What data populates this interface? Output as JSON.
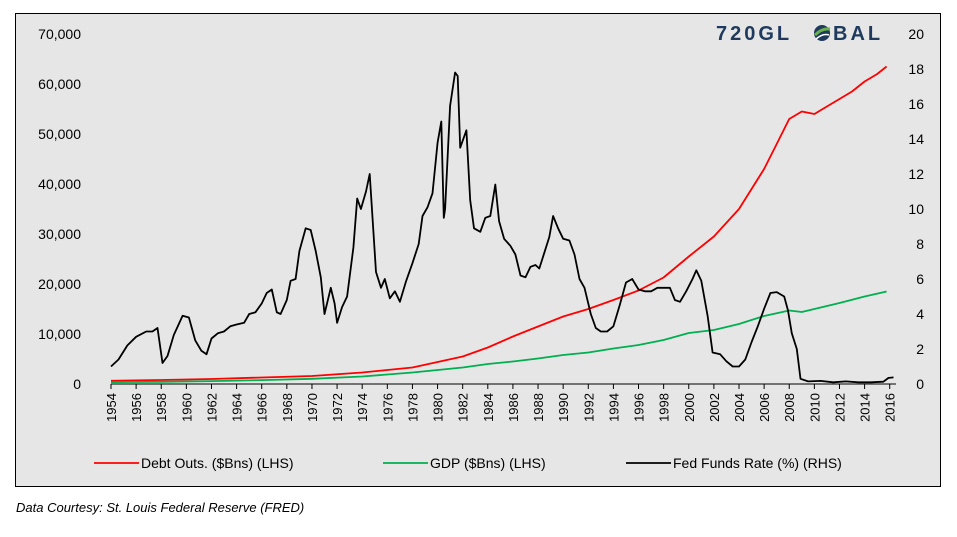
{
  "brand": {
    "name_left": "720GL",
    "name_right": "BAL"
  },
  "source_note": "Data Courtesy: St. Louis Federal Reserve (FRED)",
  "chart_data": {
    "type": "line",
    "title": "",
    "xlabel": "",
    "ylabel_left": "",
    "ylabel_right": "",
    "xlim": [
      1954,
      2016.5
    ],
    "ylim_left": [
      0,
      70000
    ],
    "ylim_right": [
      0,
      20
    ],
    "yticks_left": [
      "0",
      "10,000",
      "20,000",
      "30,000",
      "40,000",
      "50,000",
      "60,000",
      "70,000"
    ],
    "yticks_right": [
      "0",
      "2",
      "4",
      "6",
      "8",
      "10",
      "12",
      "14",
      "16",
      "18",
      "20"
    ],
    "xticks": [
      "1954",
      "1956",
      "1958",
      "1960",
      "1962",
      "1964",
      "1966",
      "1968",
      "1970",
      "1972",
      "1974",
      "1976",
      "1978",
      "1980",
      "1982",
      "1984",
      "1986",
      "1988",
      "1990",
      "1992",
      "1994",
      "1996",
      "1998",
      "2000",
      "2002",
      "2004",
      "2006",
      "2008",
      "2010",
      "2012",
      "2014",
      "2016"
    ],
    "grid": false,
    "legend_position": "bottom",
    "series": [
      {
        "name": "Debt Outs. ($Bns) (LHS)",
        "axis": "left",
        "color": "#ff0000",
        "points": [
          [
            1954,
            650
          ],
          [
            1958,
            800
          ],
          [
            1962,
            1000
          ],
          [
            1966,
            1300
          ],
          [
            1970,
            1600
          ],
          [
            1974,
            2300
          ],
          [
            1978,
            3300
          ],
          [
            1980,
            4400
          ],
          [
            1982,
            5500
          ],
          [
            1984,
            7300
          ],
          [
            1986,
            9500
          ],
          [
            1988,
            11500
          ],
          [
            1990,
            13500
          ],
          [
            1992,
            15000
          ],
          [
            1994,
            16800
          ],
          [
            1996,
            18700
          ],
          [
            1998,
            21300
          ],
          [
            2000,
            25500
          ],
          [
            2002,
            29500
          ],
          [
            2004,
            35000
          ],
          [
            2006,
            43000
          ],
          [
            2007,
            48000
          ],
          [
            2008,
            53000
          ],
          [
            2009,
            54500
          ],
          [
            2010,
            54000
          ],
          [
            2011,
            55500
          ],
          [
            2012,
            57000
          ],
          [
            2013,
            58500
          ],
          [
            2014,
            60500
          ],
          [
            2015,
            62000
          ],
          [
            2015.75,
            63500
          ]
        ]
      },
      {
        "name": "GDP ($Bns) (LHS)",
        "axis": "left",
        "color": "#00b050",
        "points": [
          [
            1954,
            380
          ],
          [
            1958,
            450
          ],
          [
            1962,
            580
          ],
          [
            1966,
            780
          ],
          [
            1970,
            1050
          ],
          [
            1974,
            1500
          ],
          [
            1978,
            2300
          ],
          [
            1980,
            2800
          ],
          [
            1982,
            3300
          ],
          [
            1984,
            4000
          ],
          [
            1986,
            4500
          ],
          [
            1988,
            5100
          ],
          [
            1990,
            5800
          ],
          [
            1992,
            6300
          ],
          [
            1994,
            7100
          ],
          [
            1996,
            7800
          ],
          [
            1998,
            8800
          ],
          [
            2000,
            10200
          ],
          [
            2002,
            10800
          ],
          [
            2004,
            12000
          ],
          [
            2006,
            13600
          ],
          [
            2008,
            14700
          ],
          [
            2009,
            14400
          ],
          [
            2010,
            15000
          ],
          [
            2012,
            16200
          ],
          [
            2014,
            17500
          ],
          [
            2015.75,
            18500
          ]
        ]
      },
      {
        "name": "Fed Funds Rate (%) (RHS)",
        "axis": "right",
        "color": "#000000",
        "points": [
          [
            1954,
            1.0
          ],
          [
            1954.6,
            1.4
          ],
          [
            1955.3,
            2.2
          ],
          [
            1956,
            2.7
          ],
          [
            1956.8,
            3.0
          ],
          [
            1957.3,
            3.0
          ],
          [
            1957.7,
            3.2
          ],
          [
            1958.1,
            1.2
          ],
          [
            1958.5,
            1.6
          ],
          [
            1959,
            2.8
          ],
          [
            1959.7,
            3.9
          ],
          [
            1960.2,
            3.8
          ],
          [
            1960.7,
            2.5
          ],
          [
            1961.2,
            1.9
          ],
          [
            1961.6,
            1.7
          ],
          [
            1962,
            2.6
          ],
          [
            1962.5,
            2.9
          ],
          [
            1963,
            3.0
          ],
          [
            1963.5,
            3.3
          ],
          [
            1964,
            3.4
          ],
          [
            1964.6,
            3.5
          ],
          [
            1965,
            4.0
          ],
          [
            1965.5,
            4.1
          ],
          [
            1966,
            4.6
          ],
          [
            1966.4,
            5.2
          ],
          [
            1966.8,
            5.4
          ],
          [
            1967.2,
            4.1
          ],
          [
            1967.5,
            4.0
          ],
          [
            1968,
            4.8
          ],
          [
            1968.3,
            5.9
          ],
          [
            1968.7,
            6.0
          ],
          [
            1969,
            7.6
          ],
          [
            1969.5,
            8.9
          ],
          [
            1969.9,
            8.8
          ],
          [
            1970.3,
            7.6
          ],
          [
            1970.7,
            6.1
          ],
          [
            1971,
            4.0
          ],
          [
            1971.5,
            5.5
          ],
          [
            1971.8,
            4.6
          ],
          [
            1972,
            3.5
          ],
          [
            1972.4,
            4.4
          ],
          [
            1972.8,
            5.0
          ],
          [
            1973.3,
            7.8
          ],
          [
            1973.6,
            10.6
          ],
          [
            1973.9,
            10.0
          ],
          [
            1974.3,
            11.0
          ],
          [
            1974.6,
            12.0
          ],
          [
            1975.1,
            6.4
          ],
          [
            1975.5,
            5.5
          ],
          [
            1975.8,
            6.0
          ],
          [
            1976.2,
            4.9
          ],
          [
            1976.6,
            5.3
          ],
          [
            1977,
            4.7
          ],
          [
            1977.5,
            5.9
          ],
          [
            1978,
            6.9
          ],
          [
            1978.5,
            8.0
          ],
          [
            1978.8,
            9.6
          ],
          [
            1979.2,
            10.1
          ],
          [
            1979.6,
            10.9
          ],
          [
            1980,
            13.8
          ],
          [
            1980.3,
            15.0
          ],
          [
            1980.5,
            9.5
          ],
          [
            1980.6,
            10.0
          ],
          [
            1981,
            15.9
          ],
          [
            1981.4,
            17.8
          ],
          [
            1981.6,
            17.6
          ],
          [
            1981.8,
            13.5
          ],
          [
            1982.3,
            14.5
          ],
          [
            1982.6,
            10.5
          ],
          [
            1982.9,
            8.9
          ],
          [
            1983.4,
            8.7
          ],
          [
            1983.8,
            9.5
          ],
          [
            1984.2,
            9.6
          ],
          [
            1984.6,
            11.4
          ],
          [
            1984.9,
            9.3
          ],
          [
            1985.3,
            8.3
          ],
          [
            1985.8,
            7.9
          ],
          [
            1986.2,
            7.4
          ],
          [
            1986.6,
            6.2
          ],
          [
            1987,
            6.1
          ],
          [
            1987.4,
            6.7
          ],
          [
            1987.8,
            6.8
          ],
          [
            1988.1,
            6.6
          ],
          [
            1988.5,
            7.5
          ],
          [
            1988.9,
            8.4
          ],
          [
            1989.2,
            9.6
          ],
          [
            1989.6,
            8.9
          ],
          [
            1990,
            8.3
          ],
          [
            1990.5,
            8.2
          ],
          [
            1990.9,
            7.4
          ],
          [
            1991.3,
            6.0
          ],
          [
            1991.7,
            5.5
          ],
          [
            1992.2,
            4.0
          ],
          [
            1992.6,
            3.2
          ],
          [
            1993,
            3.0
          ],
          [
            1993.5,
            3.0
          ],
          [
            1994,
            3.3
          ],
          [
            1994.5,
            4.5
          ],
          [
            1995,
            5.8
          ],
          [
            1995.5,
            6.0
          ],
          [
            1996,
            5.4
          ],
          [
            1996.5,
            5.3
          ],
          [
            1997,
            5.3
          ],
          [
            1997.5,
            5.5
          ],
          [
            1998,
            5.5
          ],
          [
            1998.5,
            5.5
          ],
          [
            1998.9,
            4.8
          ],
          [
            1999.3,
            4.7
          ],
          [
            1999.8,
            5.3
          ],
          [
            2000.3,
            6.0
          ],
          [
            2000.6,
            6.5
          ],
          [
            2001,
            5.9
          ],
          [
            2001.5,
            3.9
          ],
          [
            2001.9,
            1.8
          ],
          [
            2002.5,
            1.7
          ],
          [
            2003,
            1.3
          ],
          [
            2003.5,
            1.0
          ],
          [
            2004,
            1.0
          ],
          [
            2004.5,
            1.4
          ],
          [
            2005,
            2.4
          ],
          [
            2005.5,
            3.3
          ],
          [
            2006,
            4.3
          ],
          [
            2006.5,
            5.2
          ],
          [
            2007,
            5.25
          ],
          [
            2007.6,
            5.0
          ],
          [
            2007.9,
            4.2
          ],
          [
            2008.2,
            2.9
          ],
          [
            2008.6,
            2.0
          ],
          [
            2008.9,
            0.3
          ],
          [
            2009.5,
            0.15
          ],
          [
            2010.5,
            0.18
          ],
          [
            2011.5,
            0.1
          ],
          [
            2012.5,
            0.15
          ],
          [
            2013.5,
            0.1
          ],
          [
            2014.5,
            0.1
          ],
          [
            2015.5,
            0.13
          ],
          [
            2015.9,
            0.35
          ],
          [
            2016.3,
            0.38
          ]
        ]
      }
    ]
  }
}
